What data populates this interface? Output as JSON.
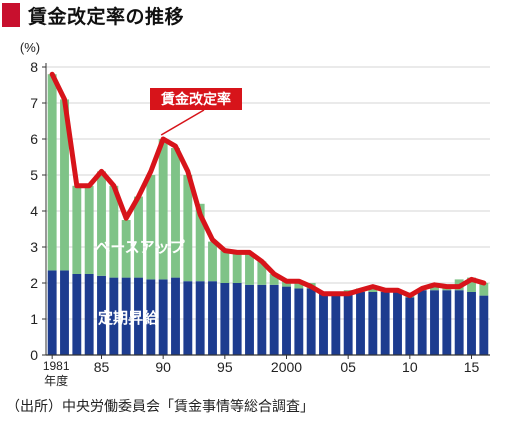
{
  "title": "賃金改定率の推移",
  "source": "（出所）中央労働委員会「賃金事情等総合調査」",
  "chart_data": {
    "type": "bar",
    "unit_label": "(%)",
    "ylim": [
      0,
      8
    ],
    "yticks": [
      "0",
      "1",
      "2",
      "3",
      "4",
      "5",
      "6",
      "7",
      "8"
    ],
    "x_tick_labels": [
      {
        "year": 1981,
        "label": "1981"
      },
      {
        "year": 1985,
        "label": "85"
      },
      {
        "year": 1990,
        "label": "90"
      },
      {
        "year": 1995,
        "label": "95"
      },
      {
        "year": 2000,
        "label": "2000"
      },
      {
        "year": 2005,
        "label": "05"
      },
      {
        "year": 2010,
        "label": "10"
      },
      {
        "year": 2015,
        "label": "15"
      }
    ],
    "x_unit_label": "年度",
    "years": [
      1981,
      1982,
      1983,
      1984,
      1985,
      1986,
      1987,
      1988,
      1989,
      1990,
      1991,
      1992,
      1993,
      1994,
      1995,
      1996,
      1997,
      1998,
      1999,
      2000,
      2001,
      2002,
      2003,
      2004,
      2005,
      2006,
      2007,
      2008,
      2009,
      2010,
      2011,
      2012,
      2013,
      2014,
      2015,
      2016
    ],
    "series": [
      {
        "name": "定期昇給",
        "color": "#1d3c8f",
        "values": [
          2.35,
          2.35,
          2.25,
          2.25,
          2.2,
          2.15,
          2.15,
          2.15,
          2.1,
          2.1,
          2.15,
          2.05,
          2.05,
          2.05,
          2.0,
          2.0,
          1.95,
          1.95,
          1.95,
          1.9,
          1.85,
          1.85,
          1.7,
          1.7,
          1.7,
          1.75,
          1.75,
          1.75,
          1.75,
          1.6,
          1.8,
          1.8,
          1.8,
          1.8,
          1.75,
          1.65
        ]
      },
      {
        "name": "ベースアップ",
        "color": "#7fc387",
        "values": [
          5.45,
          4.75,
          2.45,
          2.45,
          2.9,
          2.55,
          1.6,
          2.25,
          2.9,
          3.9,
          3.6,
          2.95,
          2.15,
          1.1,
          0.9,
          0.85,
          0.9,
          0.65,
          0.3,
          0.15,
          0.2,
          0.15,
          0.05,
          0.05,
          0.1,
          0.1,
          0.15,
          0.1,
          0.05,
          0.05,
          0.05,
          0.15,
          0.1,
          0.3,
          0.4,
          0.35
        ]
      },
      {
        "name": "賃金改定率",
        "color": "#d7141a",
        "kind": "line",
        "values": [
          7.8,
          7.1,
          4.7,
          4.7,
          5.1,
          4.7,
          3.8,
          4.4,
          5.1,
          6.0,
          5.8,
          5.1,
          3.9,
          3.2,
          2.9,
          2.85,
          2.85,
          2.6,
          2.25,
          2.05,
          2.05,
          1.9,
          1.7,
          1.7,
          1.7,
          1.8,
          1.9,
          1.8,
          1.8,
          1.65,
          1.85,
          1.95,
          1.9,
          1.9,
          2.1,
          2.0
        ]
      }
    ],
    "grid": "horizontal"
  }
}
